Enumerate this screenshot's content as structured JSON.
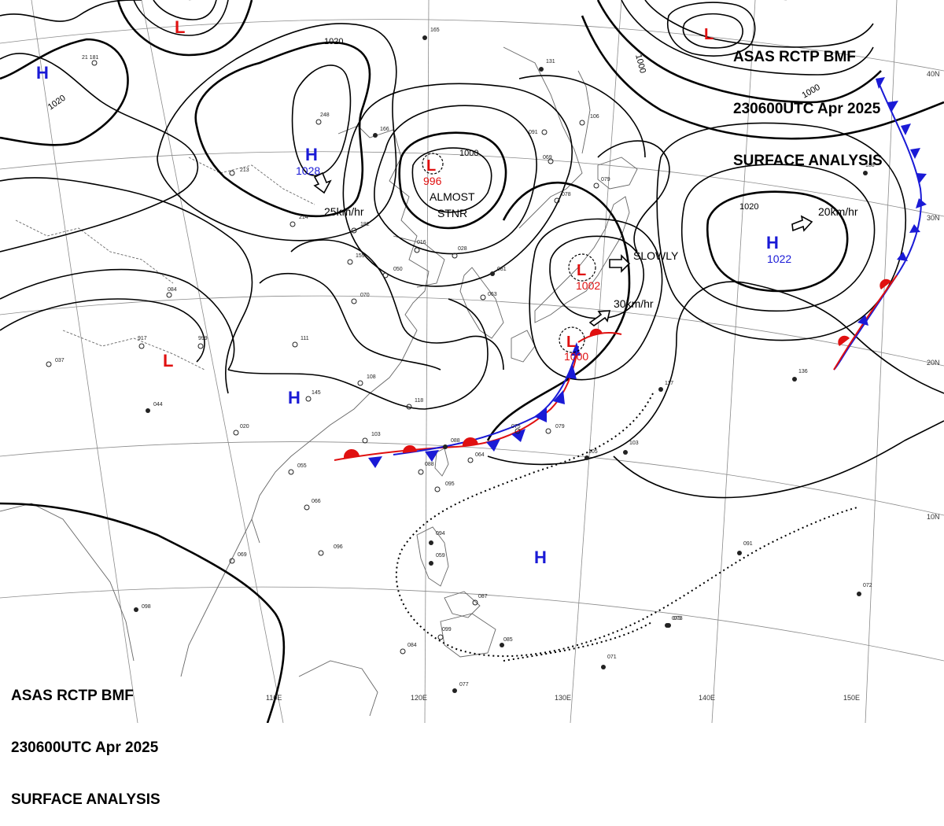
{
  "header": {
    "line1": "ASAS RCTP BMF",
    "line2": "230600UTC Apr 2025",
    "line3": "SURFACE ANALYSIS"
  },
  "header_bottom_left": {
    "line1": "ASAS RCTP BMF",
    "line2": "230600UTC Apr 2025",
    "line3": "SURFACE ANALYSIS"
  },
  "colors": {
    "high": "#1a1ad6",
    "low": "#e01010",
    "warm_front": "#e01010",
    "cold_front": "#1a1ad6",
    "isobar": "#000000",
    "grid": "#808080",
    "coast": "#606060"
  },
  "lon_labels": [
    "110E",
    "120E",
    "130E",
    "140E",
    "150E"
  ],
  "lat_labels": [
    "40N",
    "30N",
    "20N",
    "10N"
  ],
  "isobar_labels": [
    "1020",
    "1020",
    "1000",
    "1000",
    "1000",
    "1020"
  ],
  "pressure_centers": [
    {
      "type": "H",
      "value": "",
      "color": "#1a1ad6"
    },
    {
      "type": "L",
      "value": "",
      "color": "#e01010"
    },
    {
      "type": "H",
      "value": "1028",
      "color": "#1a1ad6"
    },
    {
      "type": "L",
      "value": "996",
      "color": "#e01010"
    },
    {
      "type": "L",
      "value": "",
      "color": "#e01010"
    },
    {
      "type": "L",
      "value": "1002",
      "color": "#e01010"
    },
    {
      "type": "L",
      "value": "1000",
      "color": "#e01010"
    },
    {
      "type": "H",
      "value": "1022",
      "color": "#1a1ad6"
    },
    {
      "type": "L",
      "value": "",
      "color": "#e01010"
    },
    {
      "type": "H",
      "value": "",
      "color": "#1a1ad6"
    },
    {
      "type": "H",
      "value": "",
      "color": "#1a1ad6"
    }
  ],
  "motion_labels": [
    "25km/hr",
    "ALMOST",
    "STNR",
    "SLOWLY",
    "30km/hr",
    "20km/hr"
  ],
  "station_obs": [
    "21 181",
    "165",
    "131",
    "106",
    "091",
    "069",
    "078",
    "079",
    "073",
    "213",
    "214",
    "182",
    "248",
    "166",
    "159",
    "070",
    "111",
    "108",
    "145",
    "103",
    "118",
    "088",
    "064",
    "095",
    "096",
    "069",
    "098",
    "094",
    "059",
    "087",
    "099",
    "084",
    "085",
    "077",
    "071",
    "073",
    "072",
    "091",
    "136",
    "117",
    "105",
    "103",
    "084",
    "917",
    "999",
    "044",
    "037",
    "020",
    "055",
    "066",
    "088",
    "050",
    "016",
    "028",
    "063",
    "081",
    "075",
    "079",
    "188"
  ]
}
